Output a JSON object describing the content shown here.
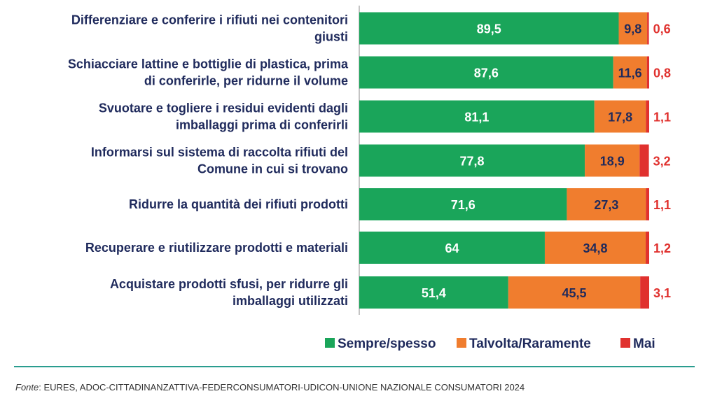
{
  "chart_data": {
    "type": "bar",
    "orientation": "horizontal",
    "stacked": true,
    "categories": [
      [
        "Differenziare e conferire i rifiuti nei contenitori",
        "giusti"
      ],
      [
        "Schiacciare lattine e bottiglie di plastica, prima",
        "di conferirle, per ridurne il volume"
      ],
      [
        "Svuotare e togliere i residui evidenti dagli",
        "imballaggi prima di conferirli"
      ],
      [
        "Informarsi sul sistema di raccolta rifiuti del",
        "Comune in cui si trovano"
      ],
      [
        "Ridurre la quantità dei rifiuti prodotti"
      ],
      [
        "Recuperare e riutilizzare prodotti e materiali"
      ],
      [
        "Acquistare prodotti sfusi, per ridurre gli",
        "imballaggi utilizzati"
      ]
    ],
    "series": [
      {
        "name": "Sempre/spesso",
        "color": "#1aa55a",
        "label_color": "#ffffff",
        "values": [
          89.5,
          87.6,
          81.1,
          77.8,
          71.6,
          64,
          51.4
        ],
        "labels": [
          "89,5",
          "87,6",
          "81,1",
          "77,8",
          "71,6",
          "64",
          "51,4"
        ]
      },
      {
        "name": "Talvolta/Raramente",
        "color": "#f07d2e",
        "label_color": "#1f2a5c",
        "values": [
          9.8,
          11.6,
          17.8,
          18.9,
          27.3,
          34.8,
          45.5
        ],
        "labels": [
          "9,8",
          "11,6",
          "17,8",
          "18,9",
          "27,3",
          "34,8",
          "45,5"
        ]
      },
      {
        "name": "Mai",
        "color": "#e0312e",
        "label_color": "#e0312e",
        "values": [
          0.6,
          0.8,
          1.1,
          3.2,
          1.1,
          1.2,
          3.1
        ],
        "labels": [
          "0,6",
          "0,8",
          "1,1",
          "3,2",
          "1,1",
          "1,2",
          "3,1"
        ]
      }
    ],
    "xlim": [
      0,
      100
    ],
    "legend_position": "bottom-right",
    "grid": false
  },
  "source": {
    "prefix": "Fonte",
    "text": ": EURES, ADOC-CITTADINANZATTIVA-FEDERCONSUMATORI-UDICON-UNIONE NAZIONALE CONSUMATORI 2024"
  },
  "colors": {
    "rule": "#2a9d8f",
    "axis": "#8a8a8a",
    "label_text": "#1f2a5c"
  }
}
